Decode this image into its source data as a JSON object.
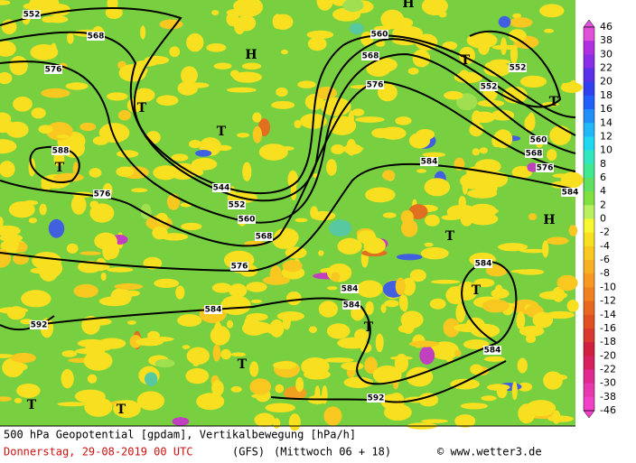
{
  "map": {
    "contour_labels": [
      "552",
      "568",
      "576",
      "588",
      "576",
      "544",
      "552",
      "560",
      "568",
      "576",
      "584",
      "560",
      "568",
      "576",
      "552",
      "552",
      "560",
      "568",
      "576",
      "584",
      "584",
      "584",
      "584",
      "584",
      "584",
      "592",
      "592"
    ],
    "centers": [
      "H",
      "H",
      "T",
      "T",
      "T",
      "T",
      "T",
      "H",
      "T",
      "T",
      "T",
      "T",
      "T",
      "T"
    ]
  },
  "legend": {
    "labels": [
      "46",
      "38",
      "30",
      "22",
      "20",
      "18",
      "16",
      "14",
      "12",
      "10",
      "8",
      "6",
      "4",
      "2",
      "0",
      "-2",
      "-4",
      "-6",
      "-8",
      "-10",
      "-12",
      "-14",
      "-16",
      "-18",
      "-20",
      "-22",
      "-30",
      "-38",
      "-46"
    ],
    "colors": [
      "#e050d8",
      "#b030e0",
      "#8a2ee8",
      "#5a30e8",
      "#3040f0",
      "#2060f8",
      "#2090f8",
      "#20b8f8",
      "#20d8f0",
      "#30e8c0",
      "#40e890",
      "#60e060",
      "#80e040",
      "#b8f060",
      "#f8f830",
      "#f8e020",
      "#f8c820",
      "#f8b020",
      "#f89820",
      "#f08020",
      "#e86820",
      "#e05020",
      "#d83830",
      "#d02040",
      "#d82060",
      "#e02890",
      "#e838b0",
      "#f040c8"
    ]
  },
  "footer": {
    "title": "500 hPa Geopotential [gpdam], Vertikalbewegung [hPa/h]",
    "date": "Donnerstag, 29-08-2019  00 UTC",
    "model": "(GFS)",
    "run": "(Mittwoch 06 + 18)",
    "credit": "© www.wetter3.de"
  }
}
